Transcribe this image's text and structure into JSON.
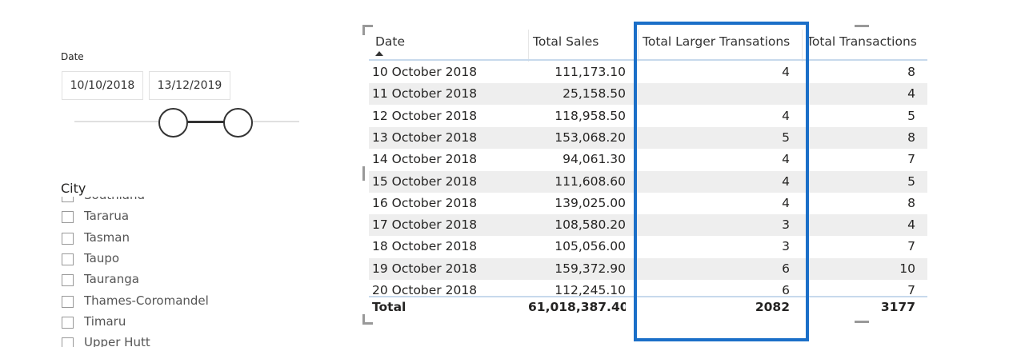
{
  "date_slicer": {
    "label": "Date",
    "start": "10/10/2018",
    "end": "13/12/2019"
  },
  "city_slicer": {
    "title": "City",
    "items": [
      "Southland",
      "Tararua",
      "Tasman",
      "Taupo",
      "Tauranga",
      "Thames-Coromandel",
      "Timaru",
      "Upper Hutt"
    ]
  },
  "table": {
    "headers": [
      "Date",
      "Total Sales",
      "Total Larger Transations",
      "Total Transactions"
    ],
    "rows": [
      [
        "10 October 2018",
        "111,173.10",
        4,
        8
      ],
      [
        "11 October 2018",
        "25,158.50",
        null,
        4
      ],
      [
        "12 October 2018",
        "118,958.50",
        4,
        5
      ],
      [
        "13 October 2018",
        "153,068.20",
        5,
        8
      ],
      [
        "14 October 2018",
        "94,061.30",
        4,
        7
      ],
      [
        "15 October 2018",
        "111,608.60",
        4,
        5
      ],
      [
        "16 October 2018",
        "139,025.00",
        4,
        8
      ],
      [
        "17 October 2018",
        "108,580.20",
        3,
        4
      ],
      [
        "18 October 2018",
        "105,056.00",
        3,
        7
      ],
      [
        "19 October 2018",
        "159,372.90",
        6,
        10
      ],
      [
        "20 October 2018",
        "112,245.10",
        6,
        7
      ]
    ],
    "total": [
      "Total",
      "61,018,387.40",
      2082,
      3177
    ]
  }
}
